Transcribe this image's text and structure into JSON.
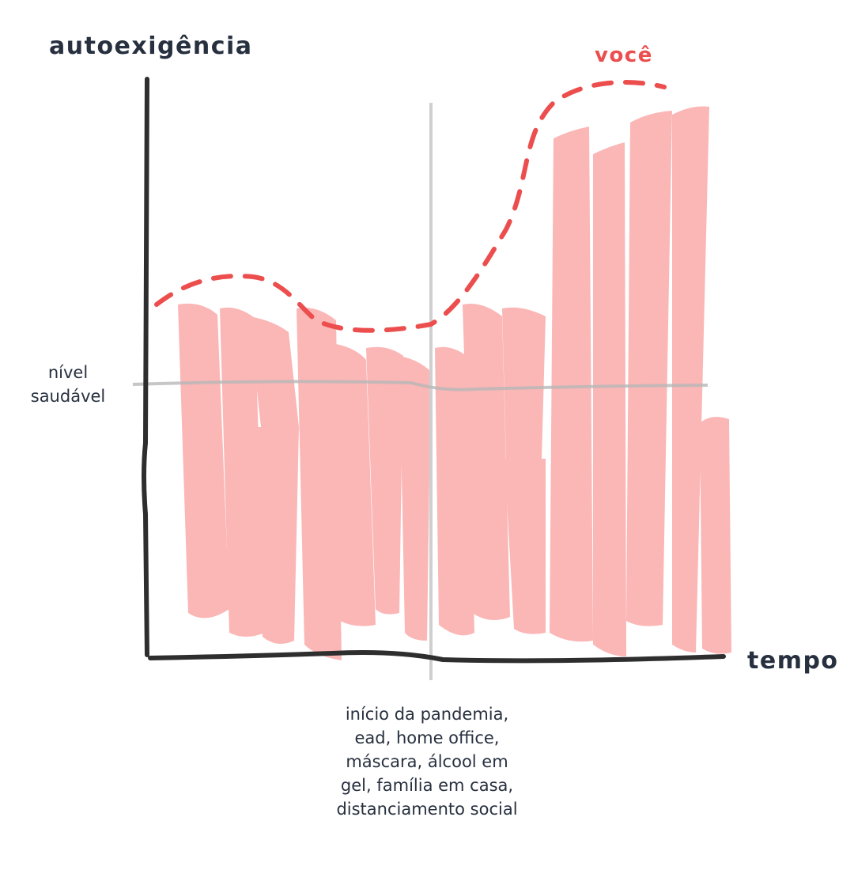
{
  "y_axis_label": "autoexigência",
  "x_axis_label": "tempo",
  "curve_label": "você",
  "reference_line_label": [
    "nível",
    "saudável"
  ],
  "event_annotation": [
    "início da pandemia,",
    "ead, home office,",
    "máscara, álcool em",
    "gel, família em casa,",
    "distanciamento social"
  ]
}
